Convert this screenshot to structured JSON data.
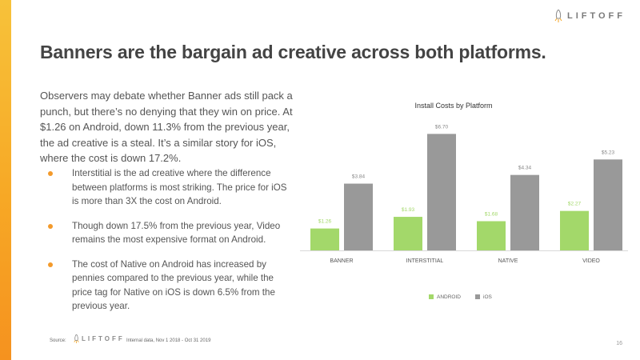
{
  "brand": "LIFTOFF",
  "title": "Banners are the bargain ad creative across both platforms.",
  "intro": "Observers may debate whether Banner ads still pack a punch, but there’s no denying that they win on price. At $1.26 on Android, down 11.3% from the previous year, the ad creative is a steal. It’s a similar story for iOS, where the cost is down 17.2%.",
  "bullets": [
    "Interstitial is the ad creative where the difference between platforms is most striking. The price for iOS is more than 3X the cost on Android.",
    "Though down 17.5% from the previous year, Video remains the most expensive format on Android.",
    "The cost of Native on Android has increased by pennies compared to the previous year, while the price tag for Native on iOS is down 6.5% from the previous year."
  ],
  "footer": {
    "source_label": "Source:",
    "note": "Internal data, Nov 1 2018 - Oct 31 2019",
    "page": "16"
  },
  "colors": {
    "accent": "#f5a623",
    "android": "#a3d86a",
    "ios": "#999999"
  },
  "chart_data": {
    "type": "bar",
    "title": "Install Costs by Platform",
    "categories": [
      "BANNER",
      "INTERSTITIAL",
      "NATIVE",
      "VIDEO"
    ],
    "series": [
      {
        "name": "ANDROID",
        "values": [
          1.26,
          1.93,
          1.68,
          2.27
        ],
        "labels": [
          "$1.26",
          "$1.93",
          "$1.68",
          "$2.27"
        ]
      },
      {
        "name": "iOS",
        "values": [
          3.84,
          6.7,
          4.34,
          5.23
        ],
        "labels": [
          "$3.84",
          "$6.70",
          "$4.34",
          "$5.23"
        ]
      }
    ],
    "ylim": [
      0,
      7.5
    ],
    "grid": false,
    "legend": "bottom"
  }
}
